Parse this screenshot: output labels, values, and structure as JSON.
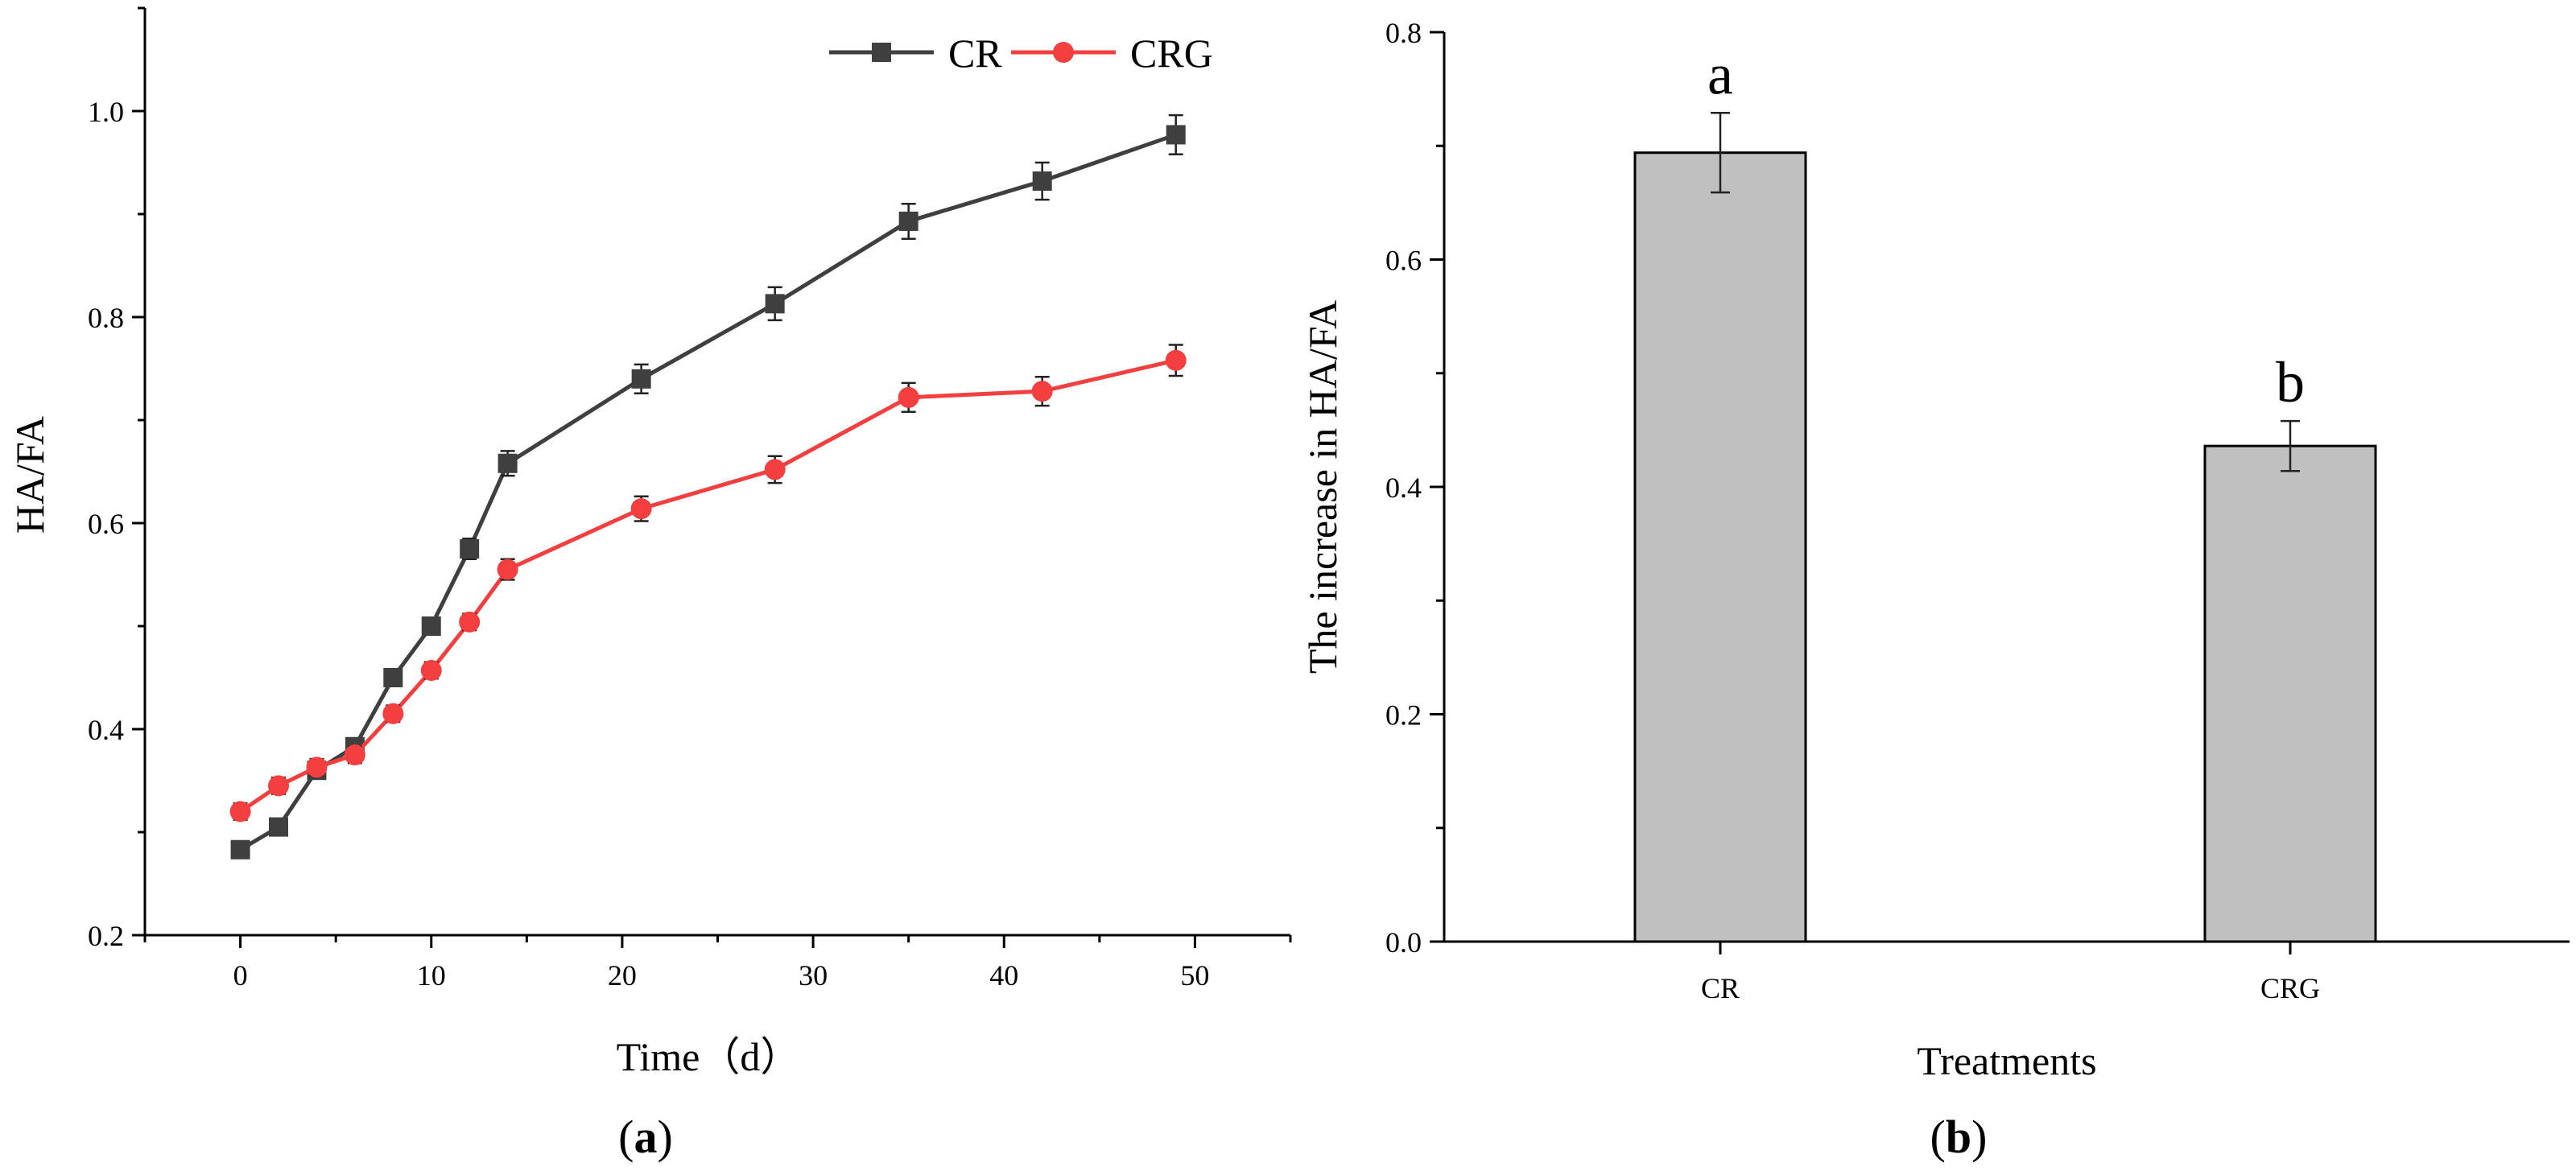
{
  "chart_data": [
    {
      "type": "line",
      "panel_label": "(a)",
      "xlabel": "Time（d）",
      "ylabel": "HA/FA",
      "xlim": [
        -5,
        55
      ],
      "ylim": [
        0.2,
        1.1
      ],
      "xticks": [
        0,
        10,
        20,
        30,
        40,
        50
      ],
      "yticks": [
        0.2,
        0.4,
        0.6,
        0.8,
        1.0
      ],
      "legend_position": "top-right",
      "series": [
        {
          "name": "CR",
          "color": "#3f3f3f",
          "marker": "square",
          "x": [
            0,
            2,
            4,
            6,
            8,
            10,
            12,
            14,
            21,
            28,
            35,
            42,
            49
          ],
          "values": [
            0.283,
            0.305,
            0.36,
            0.383,
            0.45,
            0.5,
            0.575,
            0.658,
            0.74,
            0.813,
            0.893,
            0.932,
            0.977
          ],
          "errors": [
            0.008,
            0.008,
            0.008,
            0.008,
            0.008,
            0.008,
            0.01,
            0.012,
            0.014,
            0.016,
            0.017,
            0.018,
            0.019
          ]
        },
        {
          "name": "CRG",
          "color": "#f33f3f",
          "marker": "circle",
          "x": [
            0,
            2,
            4,
            6,
            8,
            10,
            12,
            14,
            21,
            28,
            35,
            42,
            49
          ],
          "values": [
            0.32,
            0.345,
            0.363,
            0.375,
            0.415,
            0.457,
            0.504,
            0.555,
            0.614,
            0.652,
            0.722,
            0.728,
            0.758
          ],
          "errors": [
            0.008,
            0.008,
            0.008,
            0.008,
            0.008,
            0.008,
            0.008,
            0.01,
            0.012,
            0.013,
            0.014,
            0.014,
            0.015
          ]
        }
      ]
    },
    {
      "type": "bar",
      "panel_label": "(b)",
      "xlabel": "Treatments",
      "ylabel": "The increase in HA/FA",
      "ylim": [
        0,
        0.8
      ],
      "yticks": [
        0.0,
        0.2,
        0.4,
        0.6,
        0.8
      ],
      "categories": [
        "CR",
        "CRG"
      ],
      "values": [
        0.694,
        0.436
      ],
      "errors": [
        0.035,
        0.022
      ],
      "significance": [
        "a",
        "b"
      ],
      "bar_color": "#c0c0c0"
    }
  ]
}
